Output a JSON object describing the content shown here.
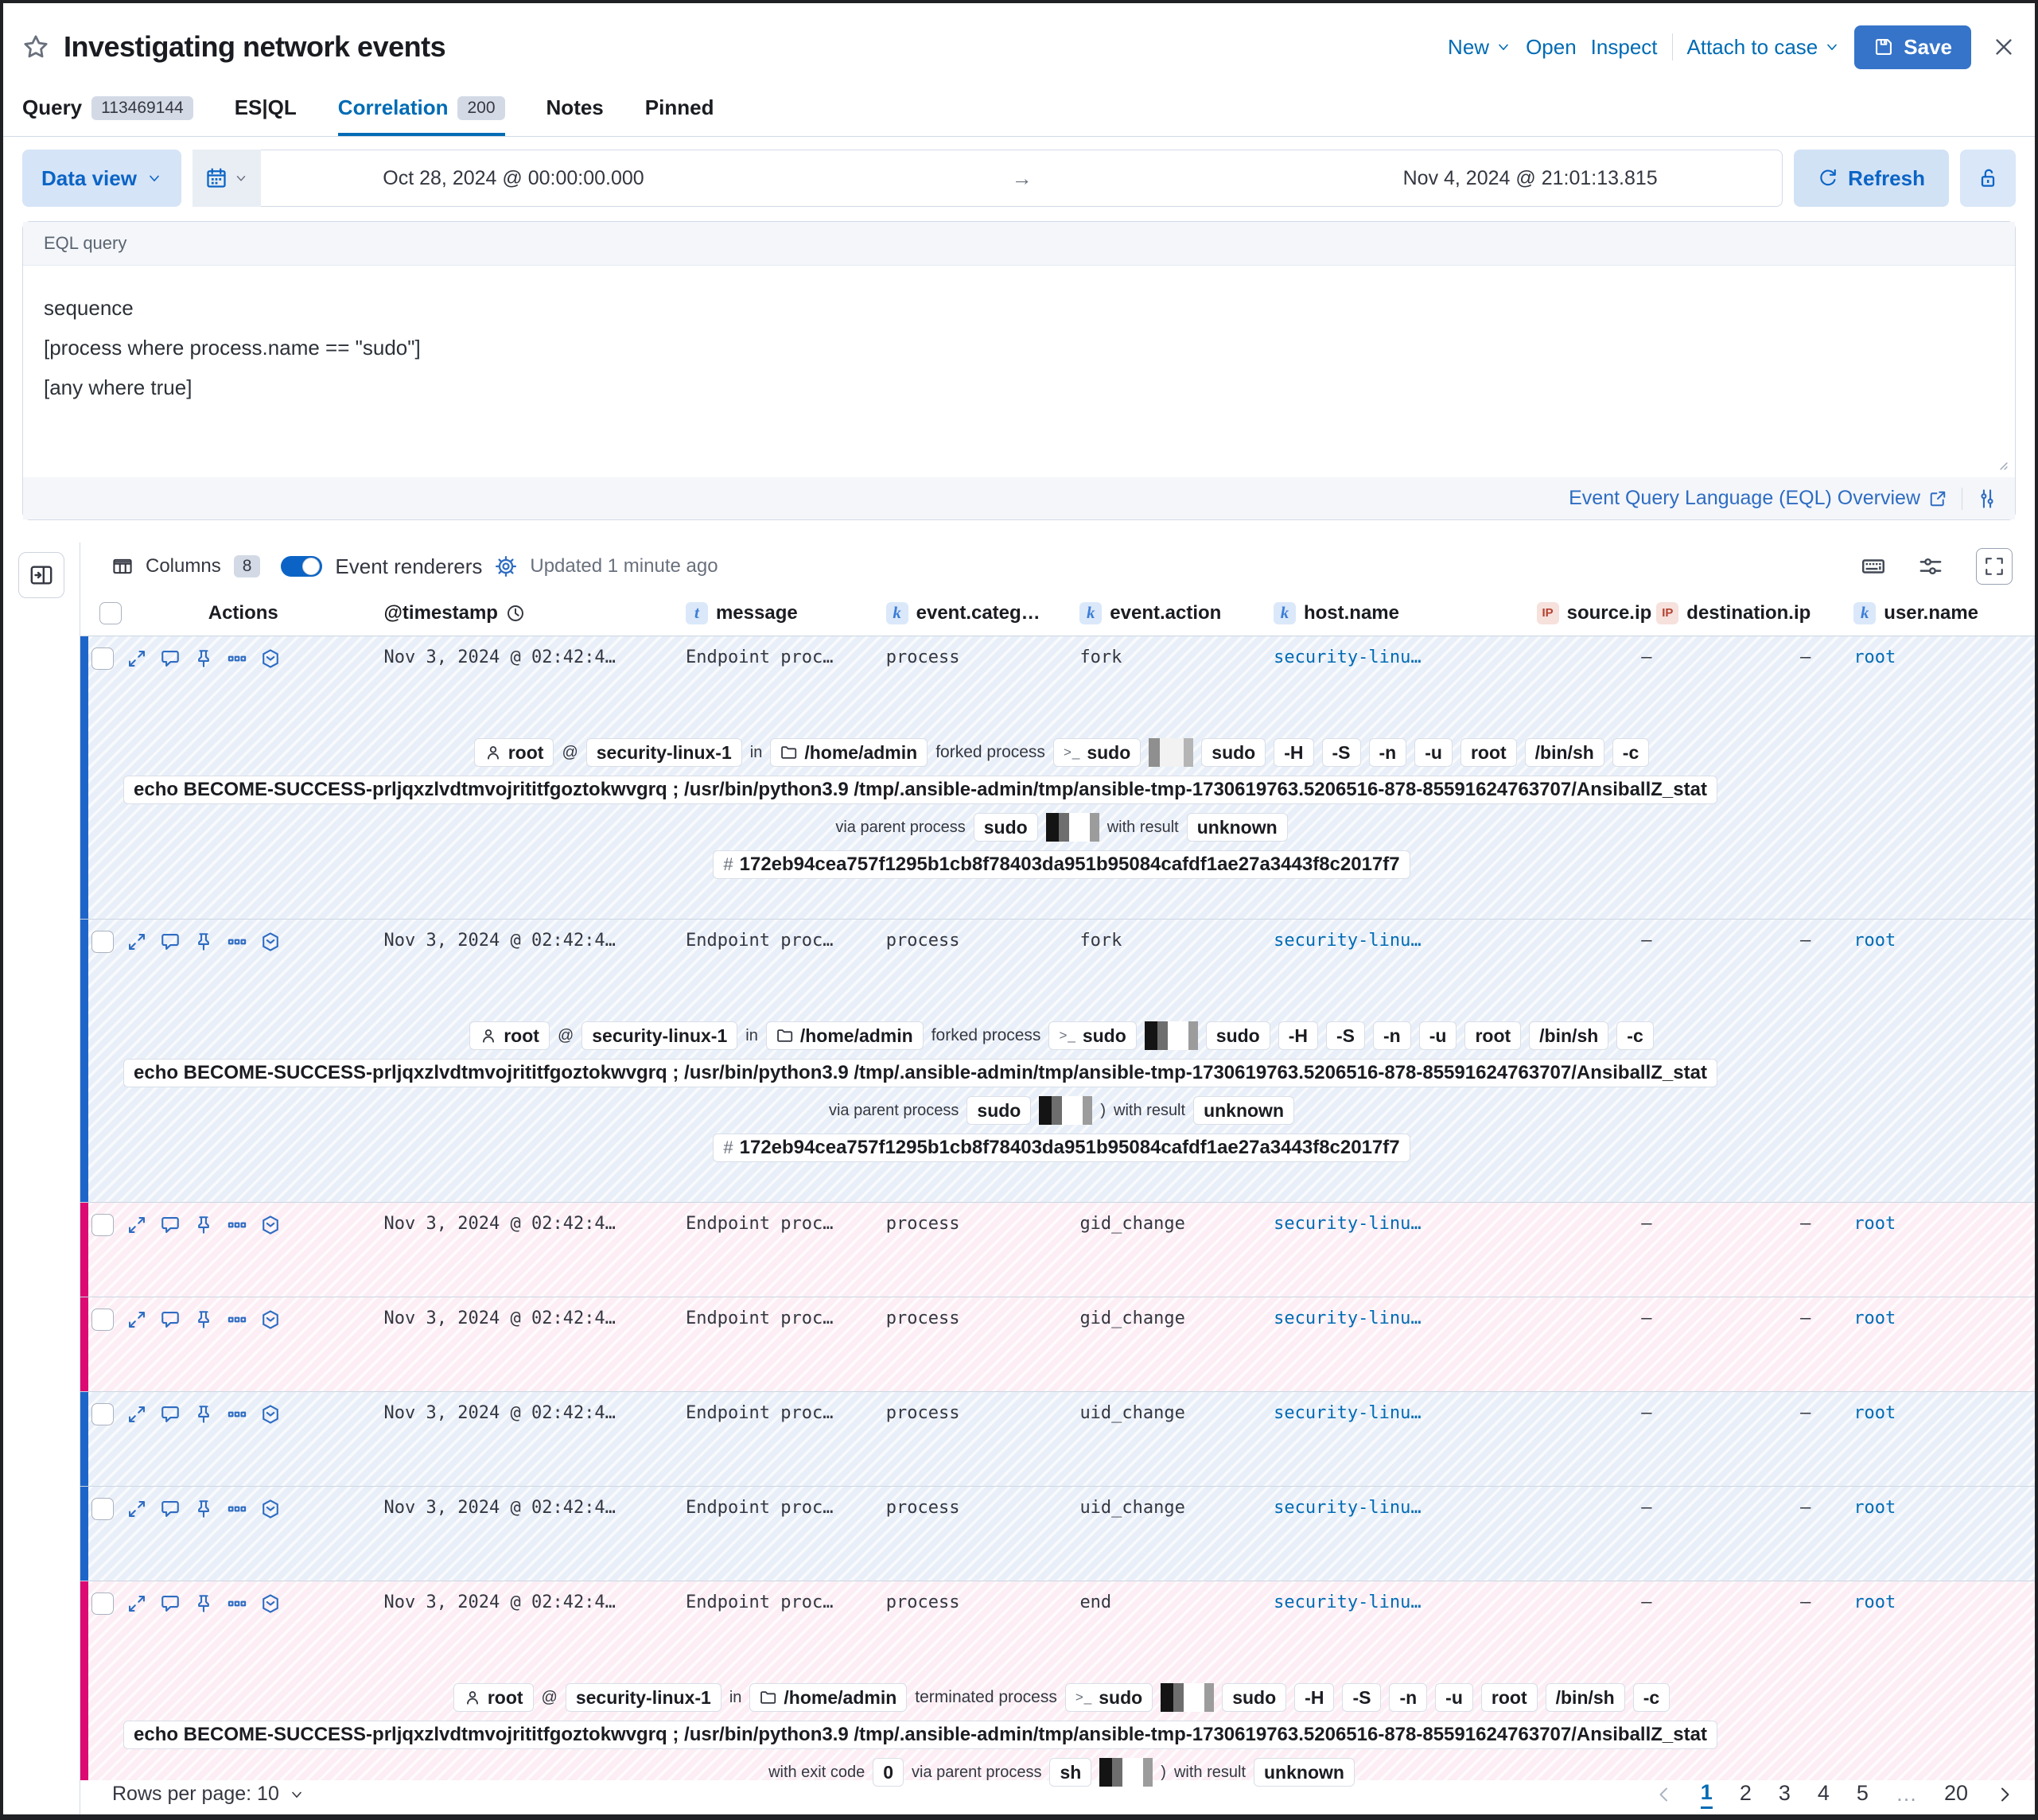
{
  "colors": {
    "primary_blue": "#0b64c5",
    "link_blue": "#006bb4",
    "save_button_blue": "#3574c9",
    "blue_row_accent": "#1e65c9",
    "pink_row_accent": "#dd0a73"
  },
  "header": {
    "title": "Investigating network events",
    "menu": {
      "new": "New",
      "open": "Open",
      "inspect": "Inspect",
      "attach_to_case": "Attach to case",
      "save": "Save"
    }
  },
  "tabs": {
    "items": [
      {
        "label": "Query",
        "badge": "113469144"
      },
      {
        "label": "ES|QL"
      },
      {
        "label": "Correlation",
        "badge": "200",
        "active": true
      },
      {
        "label": "Notes"
      },
      {
        "label": "Pinned"
      }
    ]
  },
  "querybar": {
    "data_view_label": "Data view",
    "date_start": "Oct 28, 2024 @ 00:00:00.000",
    "date_end": "Nov 4, 2024 @ 21:01:13.815",
    "refresh_label": "Refresh"
  },
  "eql": {
    "panel_label": "EQL query",
    "query_lines": [
      "sequence",
      "[process where process.name == \"sudo\"]",
      "[any where true]"
    ],
    "overview_link_label": "Event Query Language (EQL) Overview"
  },
  "grid": {
    "toolbar": {
      "columns_label": "Columns",
      "columns_count": "8",
      "event_renderers_label": "Event renderers",
      "updated_label": "Updated 1 minute ago"
    },
    "columns": [
      {
        "label": "Actions",
        "type": ""
      },
      {
        "label": "@timestamp",
        "type": "clock"
      },
      {
        "label": "message",
        "type": "t"
      },
      {
        "label": "event.categ…",
        "type": "k"
      },
      {
        "label": "event.action",
        "type": "k"
      },
      {
        "label": "host.name",
        "type": "k"
      },
      {
        "label": "source.ip",
        "type": "ip",
        "align": "right"
      },
      {
        "label": "destination.ip",
        "type": "ip",
        "align": "right"
      },
      {
        "label": "user.name",
        "type": "k"
      }
    ],
    "rows": [
      {
        "timestamp": "Nov 3, 2024 @ 02:42:4…",
        "message": "Endpoint proc…",
        "category": "process",
        "action": "fork",
        "host": "security-linu…",
        "source_ip": "–",
        "destination_ip": "–",
        "user": "root",
        "variant": "blue",
        "size": "tall",
        "renderer": "forked_1"
      },
      {
        "timestamp": "Nov 3, 2024 @ 02:42:4…",
        "message": "Endpoint proc…",
        "category": "process",
        "action": "fork",
        "host": "security-linu…",
        "source_ip": "–",
        "destination_ip": "–",
        "user": "root",
        "variant": "blue",
        "size": "tall",
        "renderer": "forked_2"
      },
      {
        "timestamp": "Nov 3, 2024 @ 02:42:4…",
        "message": "Endpoint proc…",
        "category": "process",
        "action": "gid_change",
        "host": "security-linu…",
        "source_ip": "–",
        "destination_ip": "–",
        "user": "root",
        "variant": "pink",
        "size": "short",
        "renderer": null
      },
      {
        "timestamp": "Nov 3, 2024 @ 02:42:4…",
        "message": "Endpoint proc…",
        "category": "process",
        "action": "gid_change",
        "host": "security-linu…",
        "source_ip": "–",
        "destination_ip": "–",
        "user": "root",
        "variant": "pink",
        "size": "short",
        "renderer": null
      },
      {
        "timestamp": "Nov 3, 2024 @ 02:42:4…",
        "message": "Endpoint proc…",
        "category": "process",
        "action": "uid_change",
        "host": "security-linu…",
        "source_ip": "–",
        "destination_ip": "–",
        "user": "root",
        "variant": "blue",
        "size": "short",
        "renderer": null
      },
      {
        "timestamp": "Nov 3, 2024 @ 02:42:4…",
        "message": "Endpoint proc…",
        "category": "process",
        "action": "uid_change",
        "host": "security-linu…",
        "source_ip": "–",
        "destination_ip": "–",
        "user": "root",
        "variant": "blue",
        "size": "short",
        "renderer": null
      },
      {
        "timestamp": "Nov 3, 2024 @ 02:42:4…",
        "message": "Endpoint proc…",
        "category": "process",
        "action": "end",
        "host": "security-linu…",
        "source_ip": "–",
        "destination_ip": "–",
        "user": "root",
        "variant": "pink",
        "size": "last",
        "renderer": "terminated"
      }
    ],
    "renderers": {
      "forked_1": {
        "user": "root",
        "at": "@",
        "host": "security-linux-1",
        "in_label": "in",
        "cwd": "/home/admin",
        "event_label": "forked process",
        "process": "sudo",
        "args": [
          "sudo",
          "-H",
          "-S",
          "-n",
          "-u",
          "root",
          "/bin/sh",
          "-c"
        ],
        "command": "echo BECOME-SUCCESS-prljqxzlvdtmvojrititfgoztokwvgrq ; /usr/bin/python3.9 /tmp/.ansible-admin/tmp/ansible-tmp-1730619763.5206516-878-85591624763707/AnsiballZ_stat",
        "via_parent_label": "via parent process",
        "parent_process": "sudo",
        "result_label": "with result",
        "result": "unknown",
        "hash": "172eb94cea757f1295b1cb8f78403da951b95084cafdf1ae27a3443f8c2017f7"
      },
      "forked_2": {
        "user": "root",
        "at": "@",
        "host": "security-linux-1",
        "in_label": "in",
        "cwd": "/home/admin",
        "event_label": "forked process",
        "process": "sudo",
        "args": [
          "sudo",
          "-H",
          "-S",
          "-n",
          "-u",
          "root",
          "/bin/sh",
          "-c"
        ],
        "command": "echo BECOME-SUCCESS-prljqxzlvdtmvojrititfgoztokwvgrq ; /usr/bin/python3.9 /tmp/.ansible-admin/tmp/ansible-tmp-1730619763.5206516-878-85591624763707/AnsiballZ_stat",
        "via_parent_label": "via parent process",
        "parent_process": "sudo",
        "after_redacted": ")",
        "result_label": "with result",
        "result": "unknown",
        "hash": "172eb94cea757f1295b1cb8f78403da951b95084cafdf1ae27a3443f8c2017f7"
      },
      "terminated": {
        "user": "root",
        "at": "@",
        "host": "security-linux-1",
        "in_label": "in",
        "cwd": "/home/admin",
        "event_label": "terminated process",
        "process": "sudo",
        "args": [
          "sudo",
          "-H",
          "-S",
          "-n",
          "-u",
          "root",
          "/bin/sh",
          "-c"
        ],
        "command": "echo BECOME-SUCCESS-prljqxzlvdtmvojrititfgoztokwvgrq ; /usr/bin/python3.9 /tmp/.ansible-admin/tmp/ansible-tmp-1730619763.5206516-878-85591624763707/AnsiballZ_stat",
        "exit_label": "with exit code",
        "exit_code": "0",
        "via_parent_label": "via parent process",
        "parent_process": "sh",
        "after_redacted": ")",
        "result_label": "with result",
        "result": "unknown"
      }
    }
  },
  "footer": {
    "rows_per_page_label": "Rows per page: 10",
    "pagination": {
      "pages": [
        "1",
        "2",
        "3",
        "4",
        "5",
        "…",
        "20"
      ],
      "active": "1"
    }
  }
}
